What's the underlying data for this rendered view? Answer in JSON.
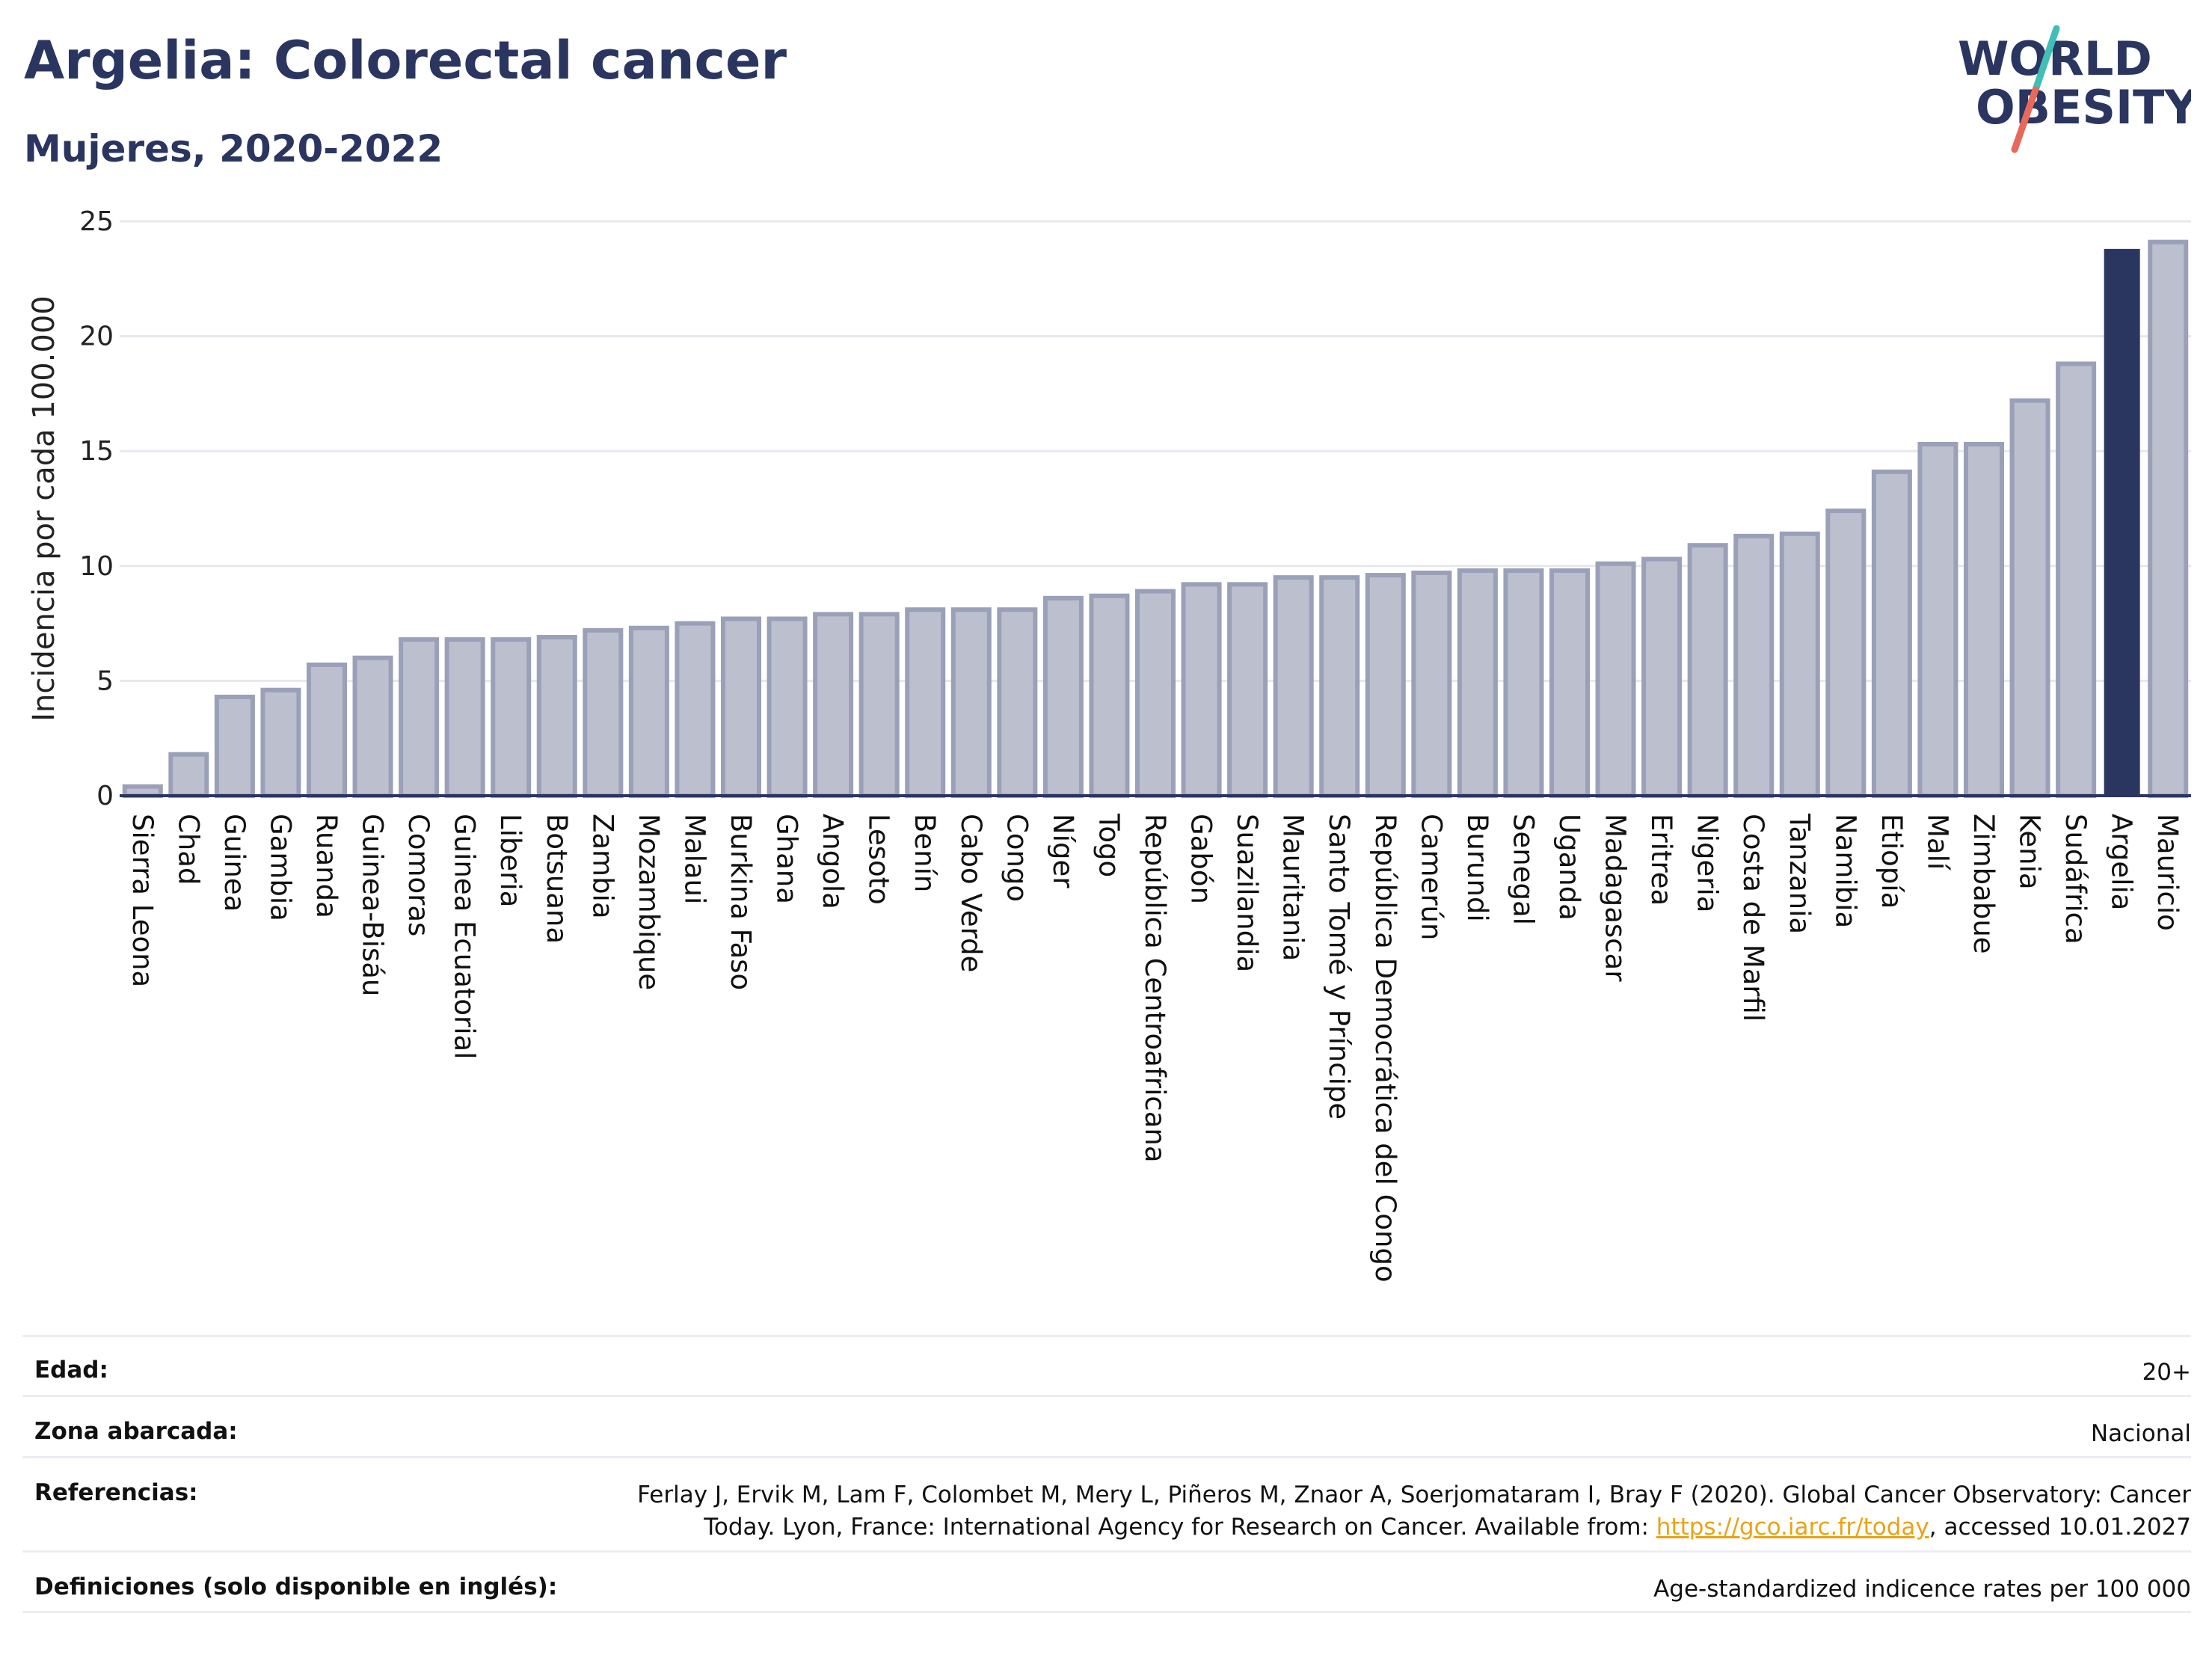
{
  "header": {
    "title": "Argelia: Colorectal cancer",
    "subtitle": "Mujeres, 2020-2022"
  },
  "logo": {
    "line1": "WORLD",
    "line2": "OBESITY",
    "slash_colors": [
      "#3fbfb5",
      "#e8685a"
    ]
  },
  "colors": {
    "primary": "#2a3560",
    "bar_default_fill": "#bcc0ce",
    "bar_default_stroke": "#9aa0b8",
    "bar_highlight": "#2a3560",
    "grid": "#e6e8ee",
    "link": "#e8a317"
  },
  "chart_data": {
    "type": "bar",
    "ylabel": "Incidencia por cada 100.000",
    "ylim": [
      0,
      25
    ],
    "yticks": [
      0,
      5,
      10,
      15,
      20,
      25
    ],
    "grid": true,
    "highlight": "Argelia",
    "categories": [
      "Sierra Leona",
      "Chad",
      "Guinea",
      "Gambia",
      "Ruanda",
      "Guinea-Bisáu",
      "Comoras",
      "Guinea Ecuatorial",
      "Liberia",
      "Botsuana",
      "Zambia",
      "Mozambique",
      "Malaui",
      "Burkina Faso",
      "Ghana",
      "Angola",
      "Lesoto",
      "Benín",
      "Cabo Verde",
      "Congo",
      "Níger",
      "Togo",
      "República Centroafricana",
      "Gabón",
      "Suazilandia",
      "Mauritania",
      "Santo Tomé y Príncipe",
      "República Democrática del Congo",
      "Camerún",
      "Burundi",
      "Senegal",
      "Uganda",
      "Madagascar",
      "Eritrea",
      "Nigeria",
      "Costa de Marfil",
      "Tanzania",
      "Namibia",
      "Etiopía",
      "Malí",
      "Zimbabue",
      "Kenia",
      "Sudáfrica",
      "Argelia",
      "Mauricio"
    ],
    "values": [
      0.4,
      1.8,
      4.3,
      4.6,
      5.7,
      6.0,
      6.8,
      6.8,
      6.8,
      6.9,
      7.2,
      7.3,
      7.5,
      7.7,
      7.7,
      7.9,
      7.9,
      8.1,
      8.1,
      8.1,
      8.6,
      8.7,
      8.9,
      9.2,
      9.2,
      9.5,
      9.5,
      9.6,
      9.7,
      9.8,
      9.8,
      9.8,
      10.1,
      10.3,
      10.9,
      11.3,
      11.4,
      12.4,
      14.1,
      15.3,
      15.3,
      17.2,
      18.8,
      23.8,
      24.1
    ]
  },
  "meta": {
    "edad_label": "Edad:",
    "edad_value": "20+",
    "zona_label": "Zona abarcada:",
    "zona_value": "Nacional",
    "ref_label": "Referencias:",
    "ref_text": "Ferlay J, Ervik M, Lam F, Colombet M, Mery L, Piñeros M, Znaor A, Soerjomataram I, Bray F (2020). Global Cancer Observatory: Cancer Today. Lyon, France: International Agency for Research on Cancer. Available from: ",
    "ref_link": "https://gco.iarc.fr/today",
    "ref_tail": ", accessed 10.01.2027",
    "def_label": "Definiciones (solo disponible en inglés):",
    "def_value": "Age-standardized indicence rates per 100 000"
  }
}
